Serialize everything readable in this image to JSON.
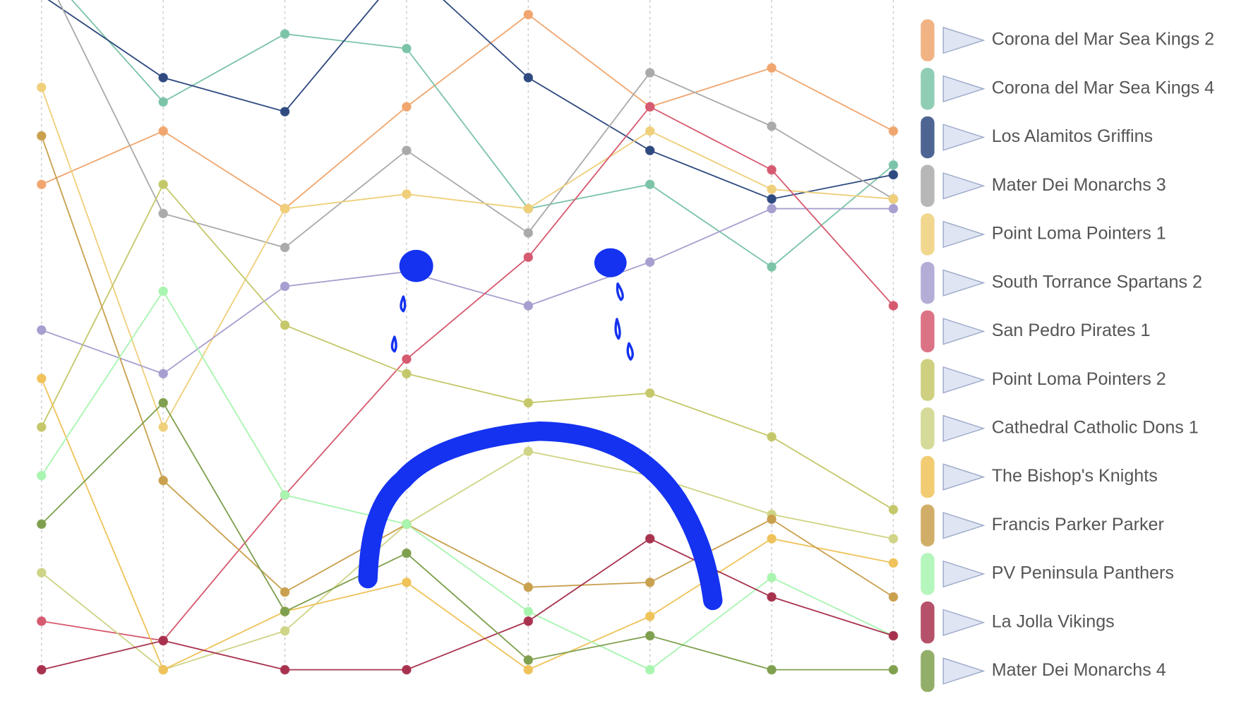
{
  "chart_data": {
    "type": "line",
    "categories": [
      null,
      null,
      null,
      null,
      null,
      null,
      null,
      null
    ],
    "ylim": [
      0,
      13.8
    ],
    "grid": true,
    "series": [
      {
        "name": "Corona del Mar Sea Kings 2",
        "color": "#f0a66e",
        "values": [
          10.0,
          11.1,
          9.5,
          11.6,
          13.5,
          11.6,
          12.4,
          11.1
        ]
      },
      {
        "name": "Corona del Mar Sea Kings 4",
        "color": "#7cc4a8",
        "values": [
          14.5,
          11.7,
          13.1,
          12.8,
          9.5,
          10.0,
          8.3,
          10.4
        ]
      },
      {
        "name": "Los Alamitos Griffins",
        "color": "#2f4a80",
        "values": [
          13.9,
          12.2,
          11.5,
          14.5,
          12.2,
          10.7,
          9.7,
          10.2
        ]
      },
      {
        "name": "Mater Dei Monarchs 3",
        "color": "#aaaaaa",
        "values": [
          14.5,
          9.4,
          8.7,
          10.7,
          9.0,
          12.3,
          11.2,
          9.7
        ]
      },
      {
        "name": "Point Loma Pointers 1",
        "color": "#efcf7a",
        "values": [
          12.0,
          5.0,
          9.5,
          9.8,
          9.5,
          11.1,
          9.9,
          9.7
        ]
      },
      {
        "name": "South Torrance Spartans 2",
        "color": "#a79fcf",
        "values": [
          7.0,
          6.1,
          7.9,
          8.2,
          7.5,
          8.4,
          9.5,
          9.5
        ]
      },
      {
        "name": "San Pedro Pirates 1",
        "color": "#d65a70",
        "values": [
          1.0,
          0.6,
          3.6,
          6.4,
          8.5,
          11.6,
          10.3,
          7.5
        ]
      },
      {
        "name": "Point Loma Pointers 2",
        "color": "#c5c86a",
        "values": [
          5.0,
          10.0,
          7.1,
          6.1,
          5.5,
          5.7,
          4.8,
          3.3
        ]
      },
      {
        "name": "Cathedral Catholic Dons 1",
        "color": "#cfd486",
        "values": [
          2.0,
          0,
          0.8,
          3.0,
          4.5,
          4.0,
          3.2,
          2.7
        ]
      },
      {
        "name": "The Bishop's Knights",
        "color": "#efc35a",
        "values": [
          6.0,
          0,
          1.2,
          1.8,
          0,
          1.1,
          2.7,
          2.2
        ]
      },
      {
        "name": "Francis Parker Parker",
        "color": "#c9a04e",
        "values": [
          11.0,
          3.9,
          1.6,
          3.0,
          1.7,
          1.8,
          3.1,
          1.5
        ]
      },
      {
        "name": "PV Peninsula Panthers",
        "color": "#a8f5b0",
        "values": [
          4.0,
          7.8,
          3.6,
          3.0,
          1.2,
          0,
          1.9,
          0.7
        ]
      },
      {
        "name": "La Jolla Vikings",
        "color": "#a8324e",
        "values": [
          0,
          0.6,
          0,
          0,
          1.0,
          2.7,
          1.5,
          0.7
        ]
      },
      {
        "name": "Mater Dei Monarchs 4",
        "color": "#7fa04e",
        "values": [
          3.0,
          5.5,
          1.2,
          2.4,
          0.2,
          0.7,
          0,
          0
        ]
      }
    ]
  }
}
